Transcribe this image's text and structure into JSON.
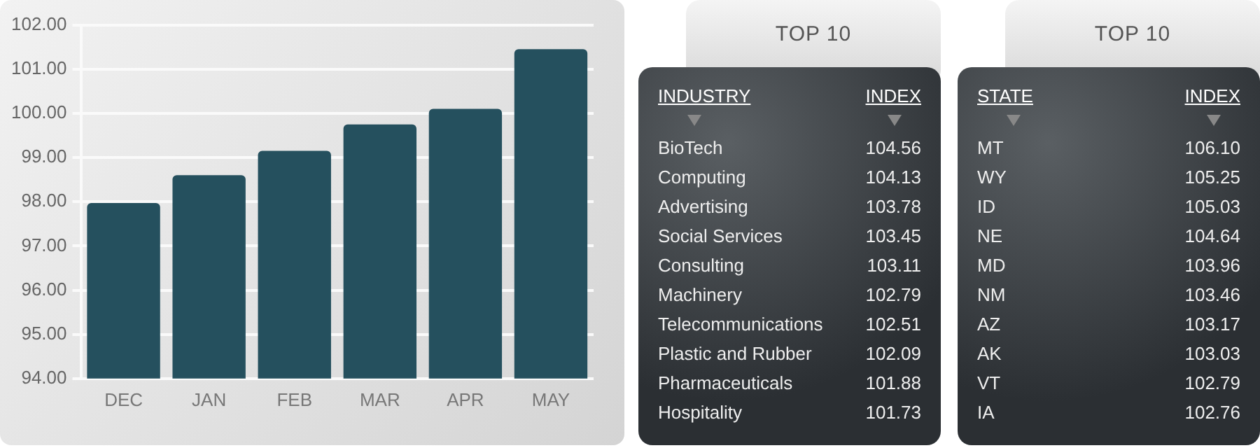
{
  "chart_data": [
    {
      "type": "bar",
      "categories": [
        "DEC",
        "JAN",
        "FEB",
        "MAR",
        "APR",
        "MAY"
      ],
      "values": [
        97.97,
        98.6,
        99.15,
        99.75,
        100.1,
        101.45
      ],
      "color": "#25505e",
      "ylim": [
        94,
        102
      ],
      "yticks": [
        {
          "value": 94,
          "label": "94.00"
        },
        {
          "value": 95,
          "label": "95.00"
        },
        {
          "value": 96,
          "label": "96.00"
        },
        {
          "value": 97,
          "label": "97.00"
        },
        {
          "value": 98,
          "label": "98.00"
        },
        {
          "value": 99,
          "label": "99.00"
        },
        {
          "value": 100,
          "label": "100.00"
        },
        {
          "value": 101,
          "label": "101.00"
        },
        {
          "value": 102,
          "label": "102.00"
        }
      ],
      "grid": "y"
    },
    {
      "type": "other",
      "title": "TOP 10",
      "xlabel": "INDUSTRY",
      "ylabel": "INDEX",
      "categories": [
        "BioTech",
        "Computing",
        "Advertising",
        "Social Services",
        "Consulting",
        "Machinery",
        "Telecommunications",
        "Plastic and Rubber",
        "Pharmaceuticals",
        "Hospitality"
      ],
      "values": [
        104.56,
        104.13,
        103.78,
        103.45,
        103.11,
        102.79,
        102.51,
        102.09,
        101.88,
        101.73
      ],
      "value_labels": [
        "104.56",
        "104.13",
        "103.78",
        "103.45",
        "103.11",
        "102.79",
        "102.51",
        "102.09",
        "101.88",
        "101.73"
      ]
    },
    {
      "type": "other",
      "title": "TOP 10",
      "xlabel": "STATE",
      "ylabel": "INDEX",
      "categories": [
        "MT",
        "WY",
        "ID",
        "NE",
        "MD",
        "NM",
        "AZ",
        "AK",
        "VT",
        "IA"
      ],
      "values": [
        106.1,
        105.25,
        105.03,
        104.64,
        103.96,
        103.46,
        103.17,
        103.03,
        102.79,
        102.76
      ],
      "value_labels": [
        "106.10",
        "105.25",
        "105.03",
        "104.64",
        "103.96",
        "103.46",
        "103.17",
        "103.03",
        "102.79",
        "102.76"
      ]
    }
  ]
}
